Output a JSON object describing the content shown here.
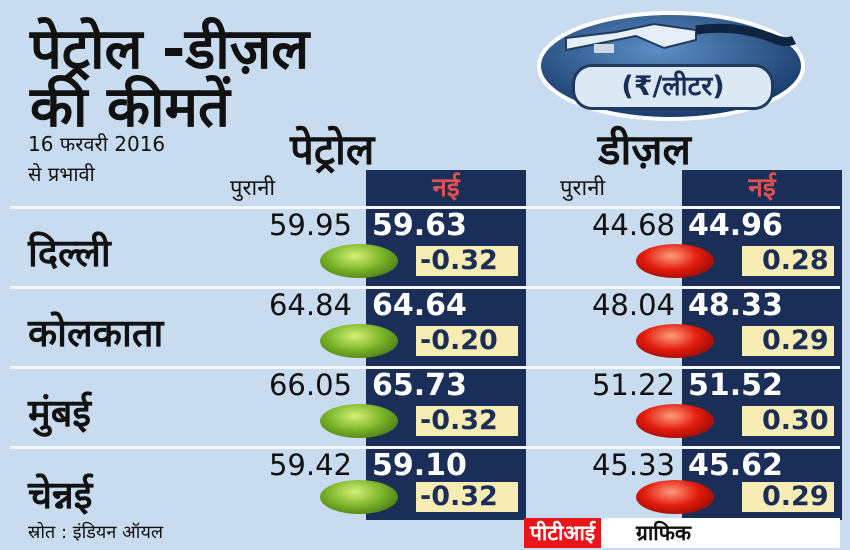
{
  "title": {
    "line1": "पेट्रोल -डीज़ल",
    "line2": "की कीमतें"
  },
  "effective": {
    "date": "16 फरवरी 2016",
    "label": "से प्रभावी"
  },
  "unit_badge": "(₹/लीटर)",
  "columns": {
    "petrol": "पेट्रोल",
    "diesel": "डीज़ल",
    "old": "पुरानी",
    "new": "नई"
  },
  "cities": [
    {
      "name": "दिल्ली",
      "petrol_old": "59.95",
      "petrol_new": "59.63",
      "petrol_change": "-0.32",
      "diesel_old": "44.68",
      "diesel_new": "44.96",
      "diesel_change": "0.28"
    },
    {
      "name": "कोलकाता",
      "petrol_old": "64.84",
      "petrol_new": "64.64",
      "petrol_change": "-0.20",
      "diesel_old": "48.04",
      "diesel_new": "48.33",
      "diesel_change": "0.29"
    },
    {
      "name": "मुंबई",
      "petrol_old": "66.05",
      "petrol_new": "65.73",
      "petrol_change": "-0.32",
      "diesel_old": "51.22",
      "diesel_new": "51.52",
      "diesel_change": "0.30"
    },
    {
      "name": "चेन्नई",
      "petrol_old": "59.42",
      "petrol_new": "59.10",
      "petrol_change": "-0.32",
      "diesel_old": "45.33",
      "diesel_new": "45.62",
      "diesel_change": "0.29"
    }
  ],
  "footer": {
    "source": "स्रोत : इंडियन ऑयल",
    "credit_brand": "पीटीआई",
    "credit_label": "ग्राफिक"
  },
  "colors": {
    "background": "#c9dcef",
    "navy": "#1b2e57",
    "change_box": "#f6ecb4",
    "decrease": "#7db52a",
    "increase": "#e21c0c",
    "credit_bg": "#e8161b"
  }
}
